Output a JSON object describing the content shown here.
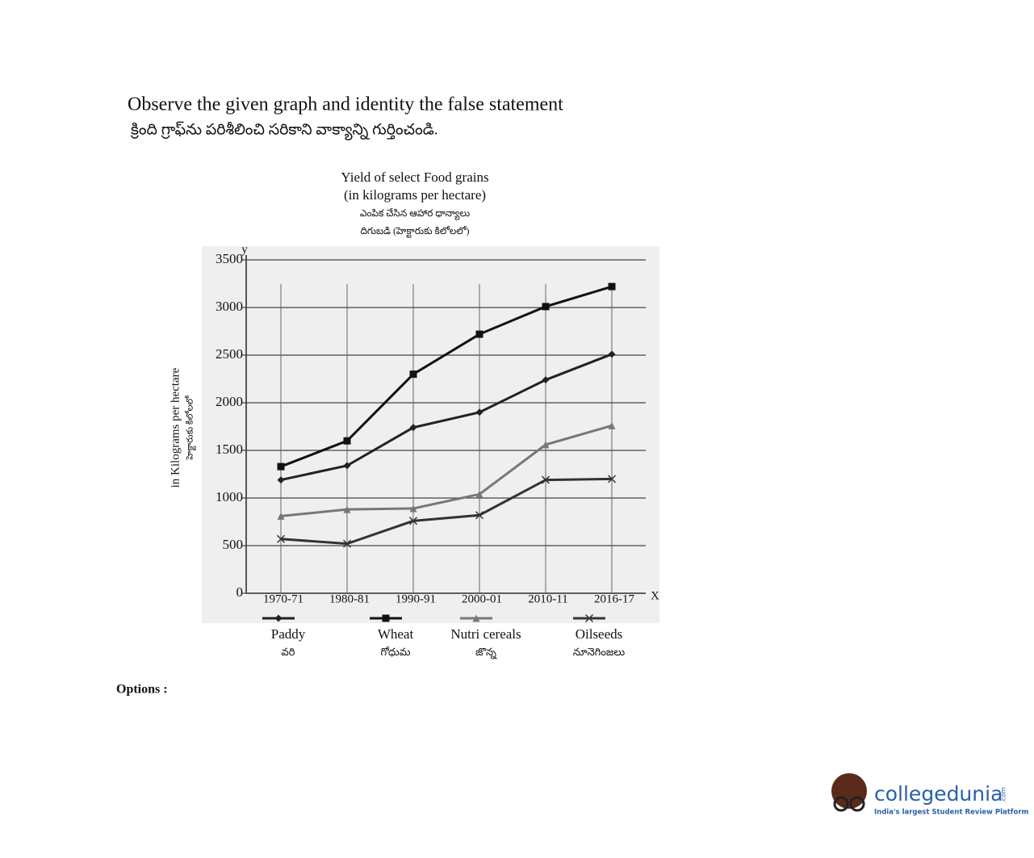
{
  "question": {
    "text": "Observe the given graph and identity the false statement",
    "text_local": "క్రింది గ్రాఫ్‌ను పరిశీలించి సరికాని వాక్యాన్ని గుర్తించండి."
  },
  "chart_data": {
    "type": "line",
    "title": [
      "Yield of select Food grains",
      "(in kilograms per hectare)",
      "ఎంపిక చేసిన ఆహార ధాన్యాలు",
      "దిగుబడి (హెక్టారుకు కిలోలలో)"
    ],
    "y_label": "in Kilograms per hectare",
    "y_label_local": "హెక్టారుకు కిలోలలో",
    "y_axis_name": "y",
    "x_axis_name": "X",
    "categories": [
      "1970-71",
      "1980-81",
      "1990-91",
      "2000-01",
      "2010-11",
      "2016-17"
    ],
    "series": [
      {
        "name": "Paddy",
        "name_local": "వరి",
        "color": "#222222",
        "marker": "diamond",
        "values": [
          1190,
          1340,
          1740,
          1900,
          2240,
          2510
        ]
      },
      {
        "name": "Wheat",
        "name_local": "గోధుమ",
        "color": "#111111",
        "marker": "square",
        "values": [
          1330,
          1600,
          2300,
          2720,
          3010,
          3220
        ]
      },
      {
        "name": "Nutri cereals",
        "name_local": "జొన్న",
        "color": "#777777",
        "marker": "triangle",
        "values": [
          810,
          880,
          890,
          1040,
          1560,
          1760
        ]
      },
      {
        "name": "Oilseeds",
        "name_local": "నూనెగింజలు",
        "color": "#333333",
        "marker": "cross",
        "values": [
          570,
          520,
          760,
          820,
          1190,
          1200
        ]
      }
    ],
    "ylim": [
      0,
      3500
    ],
    "yticks": [
      0,
      500,
      1000,
      1500,
      2000,
      2500,
      3000,
      3500
    ],
    "grid": true
  },
  "options_label": "Options :",
  "logo": {
    "name": "collegedunia",
    "suffix": ".com",
    "tagline": "India's largest Student Review Platform"
  }
}
